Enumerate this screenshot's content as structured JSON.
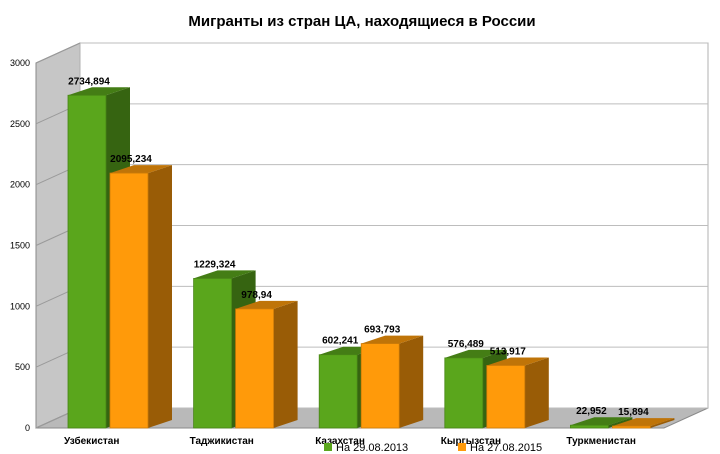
{
  "chart_data": {
    "type": "bar",
    "title": "Мигранты из стран ЦА, находящиеся в России",
    "xlabel": "",
    "ylabel": "",
    "ylim": [
      0,
      3000
    ],
    "yticks": [
      "0",
      "500",
      "1000",
      "1500",
      "2000",
      "2500",
      "3000"
    ],
    "categories": [
      "Узбекистан",
      "Таджикистан",
      "Казахстан",
      "Кыргызстан",
      "Туркменистан"
    ],
    "series": [
      {
        "name": "На 29.08.2013",
        "values": [
          2734.894,
          1229.324,
          602.241,
          576.489,
          22.952
        ],
        "labels": [
          "2734,894",
          "1229,324",
          "602,241",
          "576,489",
          "22,952"
        ],
        "color": "#5aa61c"
      },
      {
        "name": "На 27.08.2015",
        "values": [
          2095.234,
          978.94,
          693.793,
          513.917,
          15.894
        ],
        "labels": [
          "2095,234",
          "978,94",
          "693,793",
          "513,917",
          "15,894"
        ],
        "color": "#ff9a0a"
      }
    ],
    "grid": true,
    "legend_position": "bottom",
    "style": "3d"
  }
}
